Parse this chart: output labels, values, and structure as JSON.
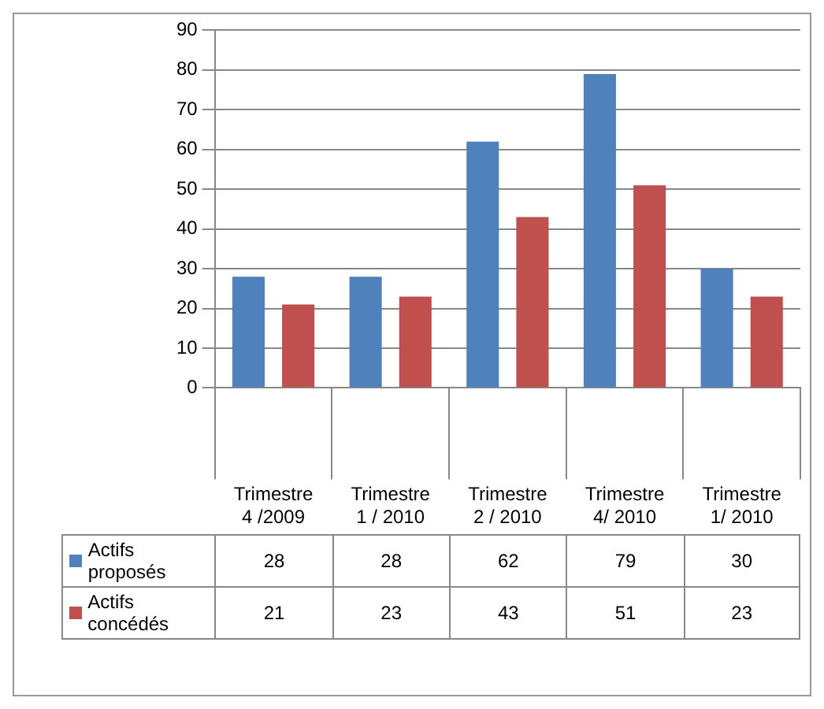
{
  "chart_data": {
    "type": "bar",
    "categories": [
      "Trimestre 4 /2009",
      "Trimestre 1 / 2010",
      "Trimestre 2 / 2010",
      "Trimestre 4/ 2010",
      "Trimestre 1/ 2010"
    ],
    "series": [
      {
        "name": "Actifs proposés",
        "color": "#4f81bd",
        "values": [
          28,
          28,
          62,
          79,
          30
        ]
      },
      {
        "name": "Actifs concédés",
        "color": "#c0504d",
        "values": [
          21,
          23,
          43,
          51,
          23
        ]
      }
    ],
    "ylim": [
      0,
      90
    ],
    "yticks": [
      0,
      10,
      20,
      30,
      40,
      50,
      60,
      70,
      80,
      90
    ],
    "grid": "y",
    "legend": "bottom",
    "data_labels": true
  }
}
